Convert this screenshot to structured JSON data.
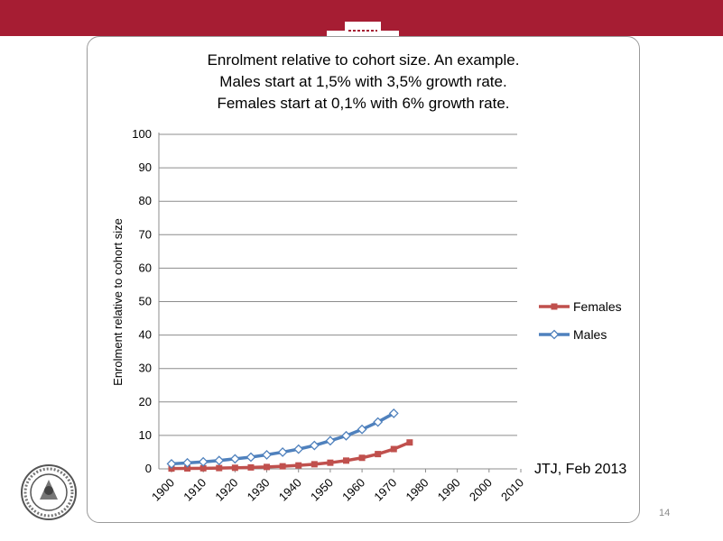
{
  "slide": {
    "number": "14",
    "footer_note": "JTJ, Feb 2013",
    "seal_text": "SIGILLUM UNIVERSITATIS ISLANDIAE",
    "colors": {
      "header_bar": "#a61d33",
      "females": "#c0504d",
      "males": "#4f81bd"
    }
  },
  "chart_data": {
    "type": "line",
    "title": [
      "Enrolment relative to cohort size. An example.",
      "Males start at 1,5% with 3,5% growth rate.",
      "Females start at 0,1% with 6% growth rate."
    ],
    "xlabel": "",
    "ylabel": "Enrolment relative to cohort size",
    "ylim": [
      0,
      100
    ],
    "yticks": [
      "0",
      "10",
      "20",
      "30",
      "40",
      "50",
      "60",
      "70",
      "80",
      "90",
      "100"
    ],
    "xticks": [
      "1900",
      "1910",
      "1920",
      "1930",
      "1940",
      "1950",
      "1960",
      "1970",
      "1980",
      "1990",
      "2000",
      "2010"
    ],
    "xlim": [
      1900,
      2010
    ],
    "grid": true,
    "legend": "right",
    "series": [
      {
        "name": "Females",
        "color": "#c0504d",
        "marker": "square",
        "x": [
          1900,
          1905,
          1910,
          1915,
          1920,
          1925,
          1930,
          1935,
          1940,
          1945,
          1950,
          1955,
          1960,
          1965,
          1970,
          1975
        ],
        "values": [
          0.1,
          0.13,
          0.18,
          0.24,
          0.32,
          0.43,
          0.57,
          0.77,
          1.03,
          1.38,
          1.84,
          2.47,
          3.3,
          4.42,
          5.92,
          7.9
        ]
      },
      {
        "name": "Males",
        "color": "#4f81bd",
        "marker": "diamond",
        "x": [
          1900,
          1905,
          1910,
          1915,
          1920,
          1925,
          1930,
          1935,
          1940,
          1945,
          1950,
          1955,
          1960,
          1965,
          1970
        ],
        "values": [
          1.5,
          1.8,
          2.1,
          2.5,
          3.0,
          3.5,
          4.2,
          5.0,
          5.9,
          7.0,
          8.4,
          9.9,
          11.8,
          14.0,
          16.6
        ]
      }
    ]
  }
}
